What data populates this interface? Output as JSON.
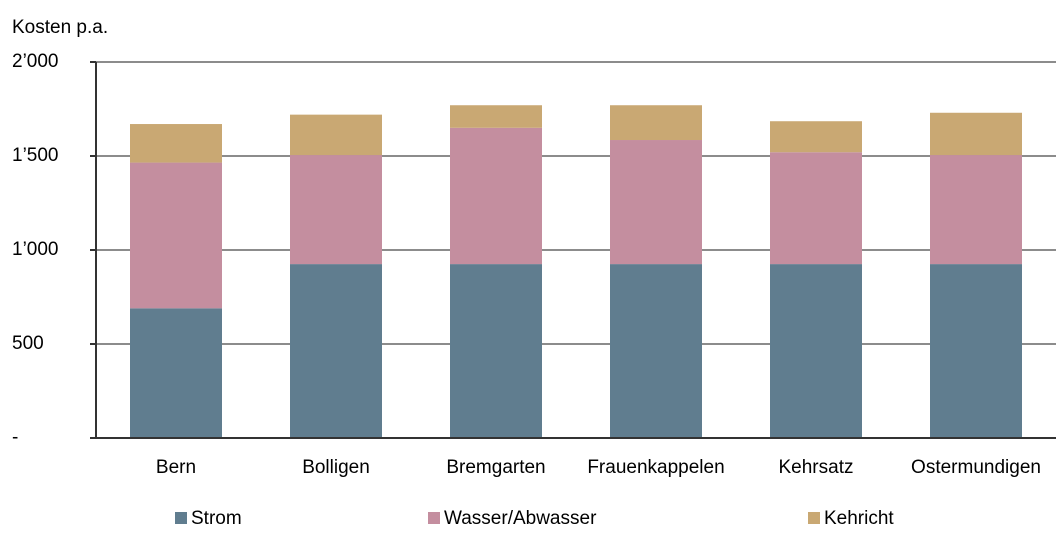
{
  "chart_data": {
    "type": "stacked_bar",
    "ylabel": "Kosten p.a.",
    "categories": [
      "Bern",
      "Bolligen",
      "Bremgarten",
      "Frauenkappelen",
      "Kehrsatz",
      "Ostermundigen"
    ],
    "series": [
      {
        "name": "Strom",
        "color": "#607d8f",
        "values": [
          690,
          925,
          925,
          925,
          925,
          925
        ]
      },
      {
        "name": "Wasser/Abwasser",
        "color": "#c48e9f",
        "values": [
          775,
          580,
          725,
          660,
          595,
          580
        ]
      },
      {
        "name": "Kehricht",
        "color": "#c9a873",
        "values": [
          205,
          215,
          120,
          185,
          165,
          225
        ]
      }
    ],
    "ylim": [
      0,
      2000
    ],
    "yticks": [
      {
        "value": 0,
        "label": "-"
      },
      500,
      {
        "value": 1000,
        "label": "1’000"
      },
      {
        "value": 1500,
        "label": "1’500"
      },
      {
        "value": 2000,
        "label": "2’000"
      }
    ],
    "grid": true,
    "legend": "bottom"
  }
}
